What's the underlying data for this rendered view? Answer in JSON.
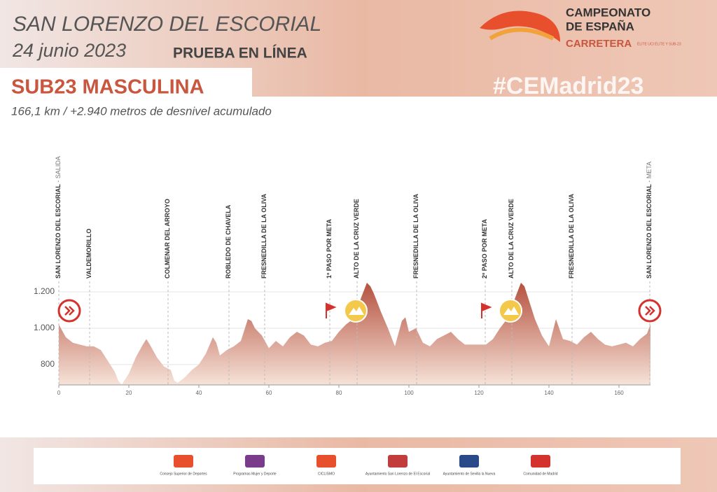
{
  "header": {
    "place": "SAN LORENZO DEL ESCORIAL",
    "date": "24 junio 2023",
    "event": "PRUEBA EN LÍNEA",
    "category": "SUB23 MASCULINA",
    "summary": "166,1 km / +2.940 metros de desnivel acumulado",
    "logo": [
      "CAMPEONATO",
      "DE ESPAÑA",
      "CARRETERA"
    ],
    "logo_small": "ÉLITE UCI ÉLITE Y SUB-23",
    "hashtag": "#CEMadrid23"
  },
  "chart_data": {
    "type": "area",
    "x": [
      0,
      2,
      4,
      6,
      8,
      10,
      12,
      14,
      16,
      17,
      18,
      20,
      22,
      24,
      25,
      26,
      28,
      30,
      32,
      33,
      34,
      36,
      38,
      40,
      42,
      44,
      45,
      46,
      48,
      50,
      52,
      54,
      55,
      56,
      58,
      60,
      62,
      64,
      66,
      68,
      70,
      72,
      74,
      76,
      78,
      80,
      82,
      84,
      86,
      88,
      89,
      90,
      92,
      94,
      96,
      98,
      99,
      100,
      102,
      104,
      106,
      108,
      110,
      112,
      114,
      116,
      118,
      120,
      122,
      124,
      126,
      128,
      130,
      132,
      133,
      134,
      136,
      138,
      140,
      142,
      144,
      146,
      148,
      150,
      152,
      154,
      156,
      158,
      160,
      162,
      164,
      166,
      168,
      169
    ],
    "values": [
      1020,
      950,
      920,
      910,
      900,
      900,
      880,
      820,
      760,
      710,
      690,
      750,
      840,
      910,
      940,
      910,
      840,
      790,
      770,
      710,
      700,
      730,
      770,
      800,
      860,
      950,
      920,
      850,
      880,
      900,
      930,
      1050,
      1040,
      1000,
      960,
      890,
      930,
      900,
      950,
      980,
      960,
      910,
      900,
      920,
      930,
      980,
      1020,
      1050,
      1150,
      1250,
      1230,
      1190,
      1090,
      1000,
      900,
      1040,
      1060,
      980,
      1000,
      920,
      900,
      940,
      960,
      980,
      940,
      910,
      910,
      910,
      910,
      940,
      1000,
      1050,
      1150,
      1250,
      1230,
      1170,
      1050,
      960,
      900,
      1050,
      940,
      930,
      910,
      950,
      980,
      940,
      910,
      900,
      910,
      920,
      900,
      940,
      970,
      1020
    ],
    "xlim": [
      0,
      169
    ],
    "ylim": [
      688,
      1300
    ],
    "xticks": [
      0,
      20,
      40,
      60,
      80,
      100,
      120,
      140,
      160
    ],
    "yticks": [
      {
        "value": 800,
        "label": "800"
      },
      {
        "value": 1000,
        "label": "1.000"
      },
      {
        "value": 1200,
        "label": "1.200"
      }
    ],
    "grid": true,
    "color": "#b5523f",
    "waypoints": [
      {
        "label": "SAN LORENZO DEL ESCORIAL",
        "sub": " - SALIDA",
        "km": 0
      },
      {
        "label": "VALDEMORILLO",
        "km": 8.8
      },
      {
        "label": "COLMENAR DEL ARROYO",
        "km": 31.2
      },
      {
        "label": "ROBLEDO DE CHAVELA",
        "km": 48.6
      },
      {
        "label": "FRESNEDILLA DE LA OLIVA",
        "km": 58.8
      },
      {
        "label": "1º PASO POR META",
        "km": 77.4
      },
      {
        "label": "ALTO DE LA CRUZ VERDE",
        "km": 85.2
      },
      {
        "label": "FRESNEDILLA DE LA OLIVA",
        "km": 102.2
      },
      {
        "label": "2º PASO POR META",
        "km": 121.8
      },
      {
        "label": "ALTO DE LA CRUZ VERDE",
        "km": 129.4
      },
      {
        "label": "FRESNEDILLA DE LA OLIVA",
        "km": 146.6
      },
      {
        "label": "SAN LORENZO DEL ESCORIAL",
        "sub": " - META",
        "km": 168.8
      }
    ]
  },
  "sponsors": [
    "Consejo Superior de Deportes",
    "Programas Mujer y Deporte",
    "CICLISMO",
    "Ayuntamiento San Lorenzo de El Escorial",
    "Ayuntamiento de Sevilla la Nueva",
    "Comunidad de Madrid"
  ]
}
